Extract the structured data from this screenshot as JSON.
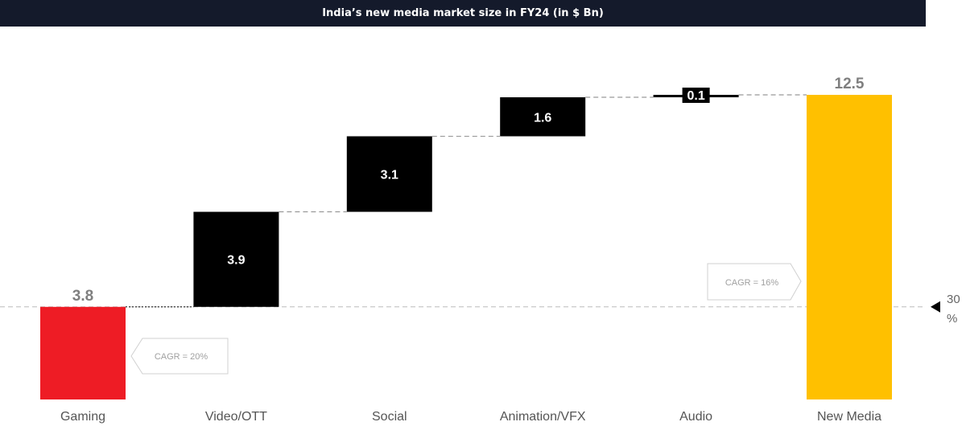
{
  "chart_data": {
    "type": "waterfall",
    "title": "India’s new media market size in FY24 (in $ Bn)",
    "categories": [
      "Gaming",
      "Video/OTT",
      "Social",
      "Animation/VFX",
      "Audio",
      "New Media"
    ],
    "values": [
      3.8,
      3.9,
      3.1,
      1.6,
      0.1,
      12.5
    ],
    "labels": [
      "3.8",
      "3.9",
      "3.1",
      "1.6",
      "0.1",
      "12.5"
    ],
    "kinds": [
      "total",
      "increment",
      "increment",
      "increment",
      "increment",
      "total"
    ],
    "colors": {
      "Gaming": "#ee1c25",
      "increment": "#000000",
      "New Media": "#ffc000"
    },
    "ylim": [
      0,
      12.5
    ],
    "grid": false,
    "annotations": {
      "gaming_cagr": "CAGR = 20%",
      "new_media_cagr": "CAGR = 16%",
      "share_marker": "30 %",
      "share_marker_lines": [
        "30",
        "%"
      ]
    }
  }
}
